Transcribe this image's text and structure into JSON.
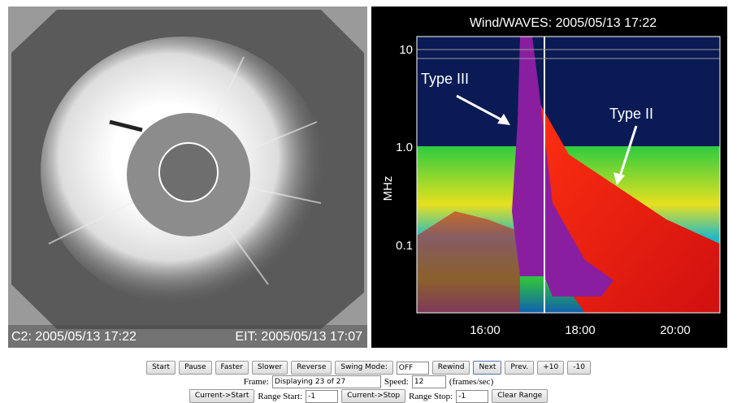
{
  "left_panel": {
    "labels": [
      "C2: 2005/05/13 17:22",
      "EIT: 2005/05/13 17:07"
    ]
  },
  "right_panel": {
    "title": "Wind/WAVES: 2005/05/13 17:22",
    "y_axis_label": "MHz",
    "y_ticks": [
      "10",
      "1.0",
      "0.1"
    ],
    "x_ticks": [
      "16:00",
      "18:00",
      "20:00"
    ],
    "annotations": [
      "Type III",
      "Type II"
    ]
  },
  "controls": {
    "row1": {
      "buttons": [
        "Start",
        "Pause",
        "Faster",
        "Slower",
        "Reverse",
        "Swing Mode:"
      ],
      "swing_value": "OFF",
      "buttons2": [
        "Rewind",
        "Next",
        "Prev.",
        "+10",
        "-10"
      ]
    },
    "row2": {
      "frame_label": "Frame:",
      "frame_value": "Displaying 23 of 27",
      "speed_label": "Speed:",
      "speed_value": "12",
      "speed_unit": "(frames/sec)"
    },
    "row3": {
      "button1": "Current->Start",
      "start_label": "Range Start:",
      "start_value": "-1",
      "button2": "Current->Stop",
      "stop_label": "Range Stop:",
      "stop_value": "-1",
      "button3": "Clear Range"
    }
  }
}
